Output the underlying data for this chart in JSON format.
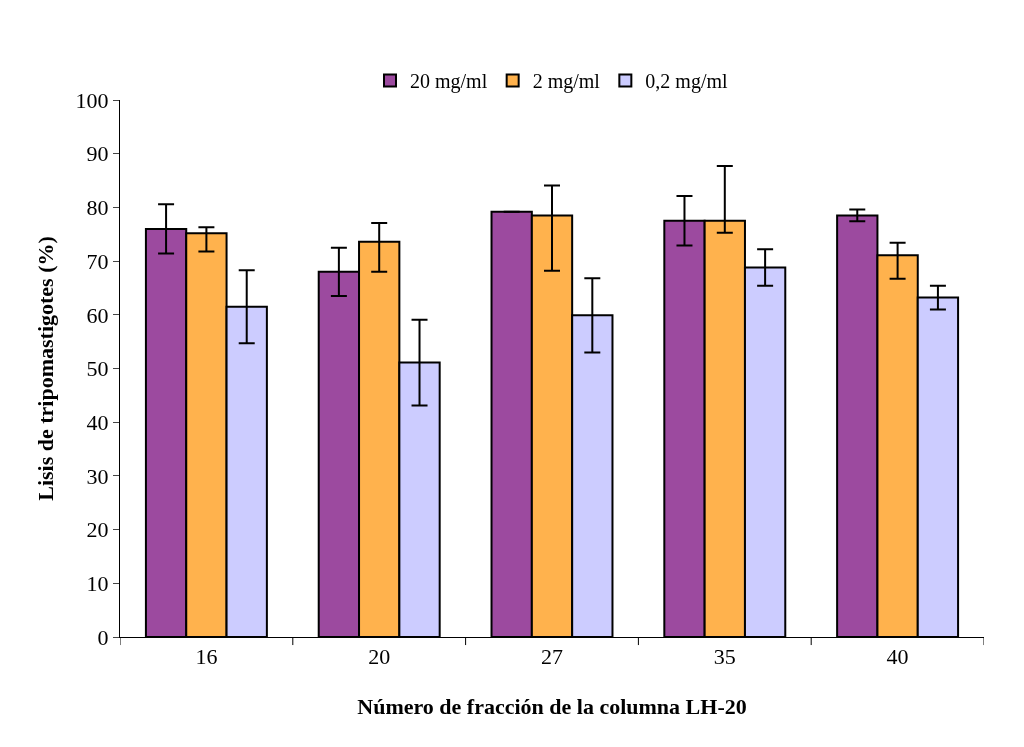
{
  "chart_data": {
    "type": "bar",
    "xlabel": "Número de fracción de la columna LH-20",
    "ylabel": "Lisis de tripomastigotes (%)",
    "categories": [
      "16",
      "20",
      "27",
      "35",
      "40"
    ],
    "series": [
      {
        "name": "20 mg/ml",
        "color": "#9c4a9f",
        "values": [
          76,
          68,
          79.2,
          77.5,
          78.5
        ],
        "errors": [
          4.6,
          4.5,
          0,
          4.6,
          1.1
        ]
      },
      {
        "name": "2 mg/ml",
        "color": "#ffb24d",
        "values": [
          75.2,
          73.6,
          78.5,
          77.5,
          71.1
        ],
        "errors": [
          [
            71.8,
            76.3
          ],
          [
            68,
            77.1
          ],
          [
            68.2,
            84.1
          ],
          [
            75.3,
            87.7
          ],
          [
            66.7,
            73.4
          ]
        ]
      },
      {
        "name": "0,2 mg/ml",
        "color": "#ccccff",
        "values": [
          61.5,
          51.1,
          59.9,
          68.8,
          63.2
        ],
        "errors": [
          6.8,
          8,
          6.9,
          3.4,
          2.2
        ]
      }
    ],
    "ylim": [
      0,
      100
    ],
    "yticks": [
      0,
      10,
      20,
      30,
      40,
      50,
      60,
      70,
      80,
      90,
      100
    ],
    "legend": "top"
  }
}
